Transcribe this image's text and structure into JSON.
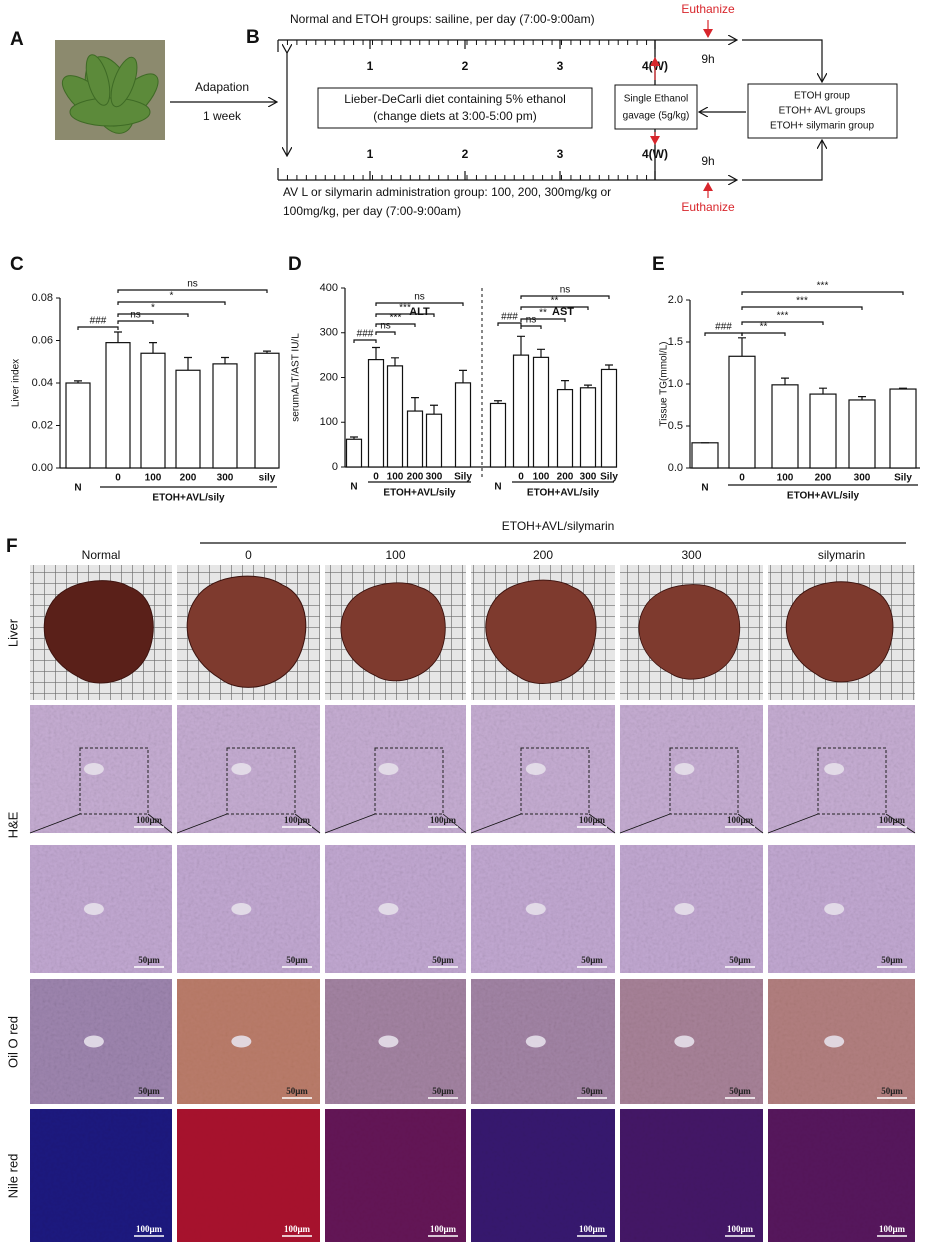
{
  "panel_labels": [
    "A",
    "B",
    "C",
    "D",
    "E",
    "F"
  ],
  "schematic": {
    "adaptation": "Adapation",
    "adaptation_time": "1 week",
    "top_text": "Normal and ETOH  groups: sailine, per day (7:00-9:00am)",
    "bottom_text": [
      "AV L or silymarin administration group: 100, 200, 300mg/kg or",
      "100mg/kg, per day (7:00-9:00am)"
    ],
    "weeks_top": [
      "1",
      "2",
      "3",
      "4(W)"
    ],
    "weeks_bottom": [
      "1",
      "2",
      "3",
      "4(W)"
    ],
    "euthanize": [
      "Euthanize",
      "Euthanize"
    ],
    "hours": [
      "9h",
      "9h"
    ],
    "diet_box": [
      "Lieber-DeCarli diet containing 5% ethanol",
      "(change diets at 3:00-5:00 pm)"
    ],
    "gavage_box": [
      "Single Ethanol",
      "gavage (5g/kg)"
    ],
    "groups_box": [
      "ETOH group",
      "ETOH+ AVL groups",
      "ETOH+ silymarin group"
    ]
  },
  "chart_data": [
    {
      "type": "bar",
      "ylabel": "Liver index",
      "color": "#ffffff",
      "ylim": [
        0,
        0.08
      ],
      "yticks": [
        {
          "value": 0,
          "label": "0.00"
        },
        {
          "value": 0.02,
          "label": "0.02"
        },
        {
          "value": 0.04,
          "label": "0.04"
        },
        {
          "value": 0.06,
          "label": "0.06"
        },
        {
          "value": 0.08,
          "label": "0.08"
        }
      ],
      "categories": [
        "N",
        "0",
        "100",
        "200",
        "300",
        "sily"
      ],
      "values": [
        0.04,
        0.059,
        0.054,
        0.046,
        0.049,
        0.054
      ],
      "errors": [
        0.001,
        0.005,
        0.005,
        0.006,
        0.003,
        0.001
      ],
      "group_label": "ETOH+AVL/sily",
      "annotations": [
        {
          "label": "###",
          "from": 0,
          "to": 1
        },
        {
          "label": "ns",
          "from": 1,
          "to": 2
        },
        {
          "label": "*",
          "from": 1,
          "to": 3
        },
        {
          "label": "*",
          "from": 1,
          "to": 4
        },
        {
          "label": "ns",
          "from": 1,
          "to": 5
        }
      ]
    },
    {
      "type": "bar",
      "ylabel": "serumALT/AST IU/L",
      "color": "#ffffff",
      "ylim": [
        0,
        400
      ],
      "yticks": [
        0,
        100,
        200,
        300,
        400
      ],
      "groups": [
        {
          "title": "ALT",
          "categories": [
            "N",
            "0",
            "100",
            "200",
            "300",
            "Sily"
          ],
          "values": [
            62,
            240,
            226,
            125,
            118,
            188
          ],
          "errors": [
            5,
            27,
            18,
            30,
            20,
            28
          ],
          "group_label": "ETOH+AVL/sily",
          "annotations": [
            {
              "label": "###",
              "from": 0,
              "to": 1
            },
            {
              "label": "ns",
              "from": 1,
              "to": 2
            },
            {
              "label": "***",
              "from": 1,
              "to": 3
            },
            {
              "label": "***",
              "from": 1,
              "to": 4
            },
            {
              "label": "ns",
              "from": 1,
              "to": 5
            }
          ]
        },
        {
          "title": "AST",
          "categories": [
            "N",
            "0",
            "100",
            "200",
            "300",
            "Sily"
          ],
          "values": [
            142,
            250,
            245,
            173,
            177,
            218
          ],
          "errors": [
            6,
            42,
            18,
            20,
            6,
            10
          ],
          "group_label": "ETOH+AVL/sily",
          "annotations": [
            {
              "label": "###",
              "from": 0,
              "to": 1
            },
            {
              "label": "ns",
              "from": 1,
              "to": 2
            },
            {
              "label": "**",
              "from": 1,
              "to": 3
            },
            {
              "label": "**",
              "from": 1,
              "to": 4
            },
            {
              "label": "ns",
              "from": 1,
              "to": 5
            }
          ]
        }
      ]
    },
    {
      "type": "bar",
      "ylabel": "Tissue TG(mmol/L)",
      "color": "#ffffff",
      "ylim": [
        0,
        2.0
      ],
      "yticks": [
        {
          "value": 0,
          "label": "0.0"
        },
        {
          "value": 0.5,
          "label": "0.5"
        },
        {
          "value": 1.0,
          "label": "1.0"
        },
        {
          "value": 1.5,
          "label": "1.5"
        },
        {
          "value": 2.0,
          "label": "2.0"
        }
      ],
      "categories": [
        "N",
        "0",
        "100",
        "200",
        "300",
        "Sily"
      ],
      "values": [
        0.3,
        1.33,
        0.99,
        0.88,
        0.81,
        0.94
      ],
      "errors": [
        0.0,
        0.22,
        0.08,
        0.07,
        0.04,
        0.01
      ],
      "group_label": "ETOH+AVL/sily",
      "annotations": [
        {
          "label": "###",
          "from": 0,
          "to": 1
        },
        {
          "label": "**",
          "from": 1,
          "to": 2
        },
        {
          "label": "***",
          "from": 1,
          "to": 3
        },
        {
          "label": "***",
          "from": 1,
          "to": 4
        },
        {
          "label": "***",
          "from": 1,
          "to": 5
        }
      ]
    }
  ],
  "histology": {
    "group_header": "ETOH+AVL/silymarin",
    "columns": [
      "Normal",
      "0",
      "100",
      "200",
      "300",
      "silymarin"
    ],
    "row_labels": [
      "Liver",
      "H&E",
      "Oil O red",
      "Nile red"
    ],
    "scale_bars": [
      "100μm",
      "50μm",
      "50μm",
      "100μm"
    ]
  }
}
